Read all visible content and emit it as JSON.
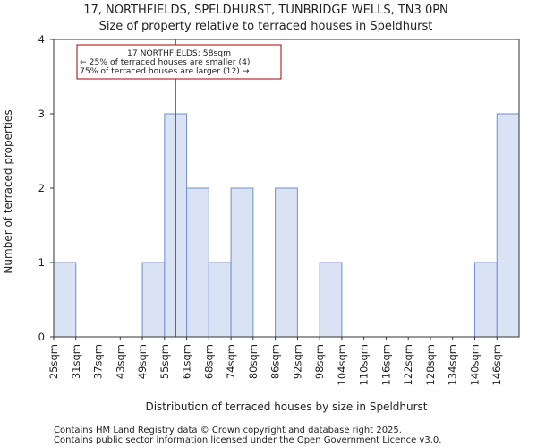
{
  "chart_data": {
    "type": "bar",
    "title": "17, NORTHFIELDS, SPELDHURST, TUNBRIDGE WELLS, TN3 0PN",
    "subtitle": "Size of property relative to terraced houses in Speldhurst",
    "xlabel": "Distribution of terraced houses by size in Speldhurst",
    "ylabel": "Number of terraced properties",
    "categories": [
      "25sqm",
      "31sqm",
      "37sqm",
      "43sqm",
      "49sqm",
      "55sqm",
      "61sqm",
      "68sqm",
      "74sqm",
      "80sqm",
      "86sqm",
      "92sqm",
      "98sqm",
      "104sqm",
      "110sqm",
      "116sqm",
      "122sqm",
      "128sqm",
      "134sqm",
      "140sqm",
      "146sqm"
    ],
    "values": [
      1,
      0,
      0,
      0,
      1,
      3,
      2,
      1,
      2,
      0,
      2,
      0,
      1,
      0,
      0,
      0,
      0,
      0,
      0,
      1,
      3
    ],
    "ylim": [
      0,
      4
    ],
    "yticks": [
      0,
      1,
      2,
      3,
      4
    ],
    "grid": false,
    "property_marker": {
      "value": 58,
      "unit": "sqm",
      "color": "#aa0000"
    },
    "annotation": {
      "lines": [
        "17 NORTHFIELDS: 58sqm",
        "← 25% of terraced houses are smaller (4)",
        "75% of terraced houses are larger (12) →"
      ],
      "border_color": "#aa0000"
    },
    "bar_fill": "#dae3f4",
    "bar_stroke": "#6f8fcf"
  },
  "footer": {
    "line1": "Contains HM Land Registry data © Crown copyright and database right 2025.",
    "line2": "Contains public sector information licensed under the Open Government Licence v3.0."
  }
}
